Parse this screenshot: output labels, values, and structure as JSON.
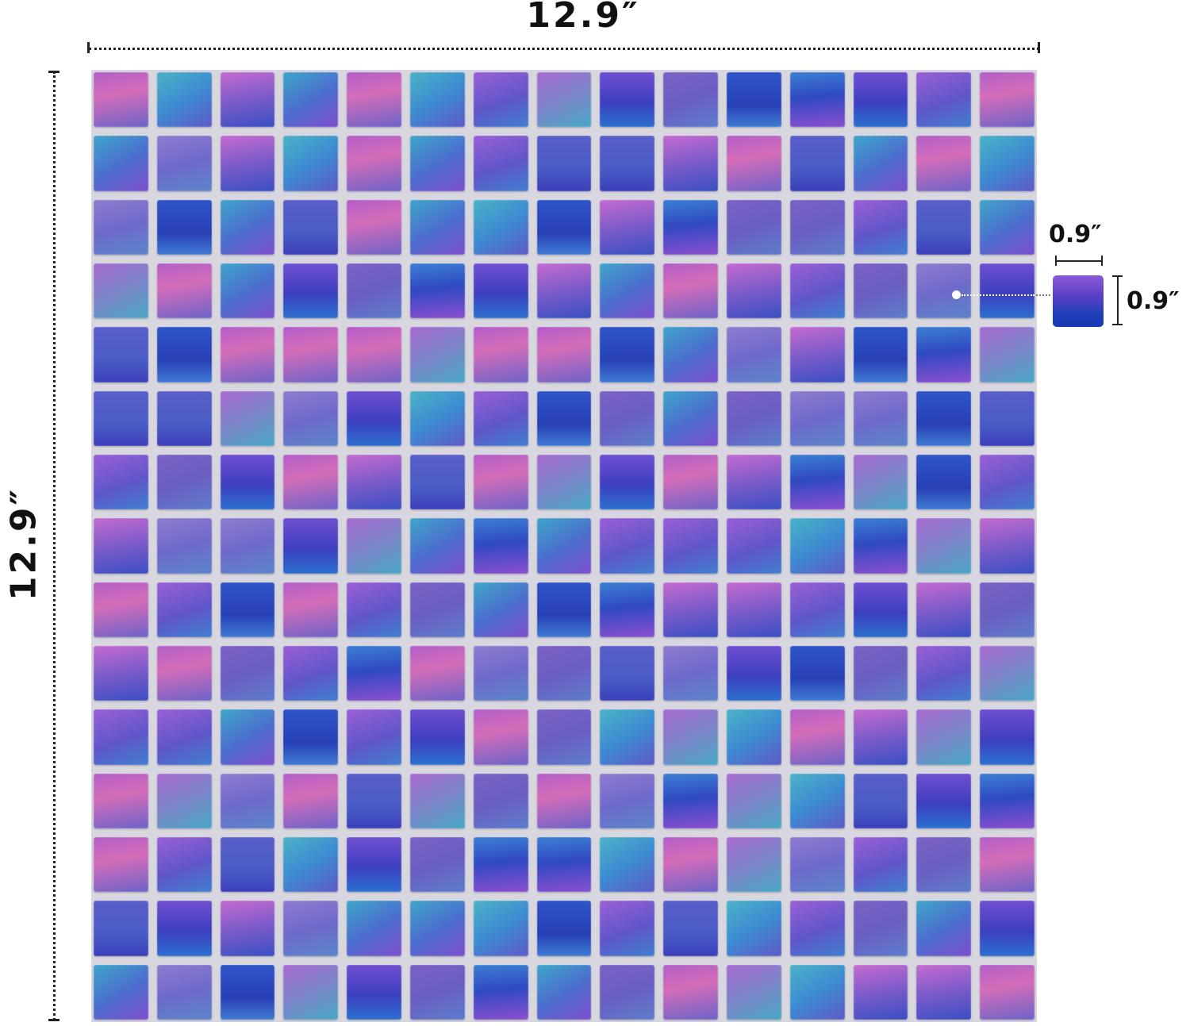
{
  "dimensions": {
    "sheet_width": "12.9″",
    "sheet_height": "12.9″",
    "tile_width": "0.9″",
    "tile_height": "0.9″"
  },
  "mosaic": {
    "rows": 15,
    "columns": 15,
    "grout_color": "#d8d6df",
    "palette": [
      "linear-gradient(160deg,#9b5fd6,#5f56c9 55%,#3f7fd0)",
      "linear-gradient(170deg,#c46bd0,#7b5bc9 50%,#3a4fc4)",
      "linear-gradient(150deg,#3fa6c9,#4b6fce 50%,#7d4fcf)",
      "linear-gradient(180deg,#2e55c8,#2840b5 60%,#3f7bd4)",
      "linear-gradient(160deg,#7c61c6,#6a5fc2 50%,#5d7ccc)",
      "linear-gradient(170deg,#b25fc9,#d46db8 40%,#6d63c9)",
      "linear-gradient(150deg,#4bb3c7,#3d8bd1 50%,#5e5ac8)",
      "linear-gradient(180deg,#6f4fd0,#3c3fbf 55%,#2c6fcf)",
      "linear-gradient(165deg,#8f7bd0,#6f6acb 50%,#5b84c9)",
      "linear-gradient(175deg,#3c7fd3,#2f49c2 45%,#8a4fd0)",
      "linear-gradient(155deg,#a86ad2,#7c86c9 50%,#47a8c6)",
      "linear-gradient(180deg,#5a5ec9,#4a5bc5 60%,#3b3fba)"
    ]
  }
}
